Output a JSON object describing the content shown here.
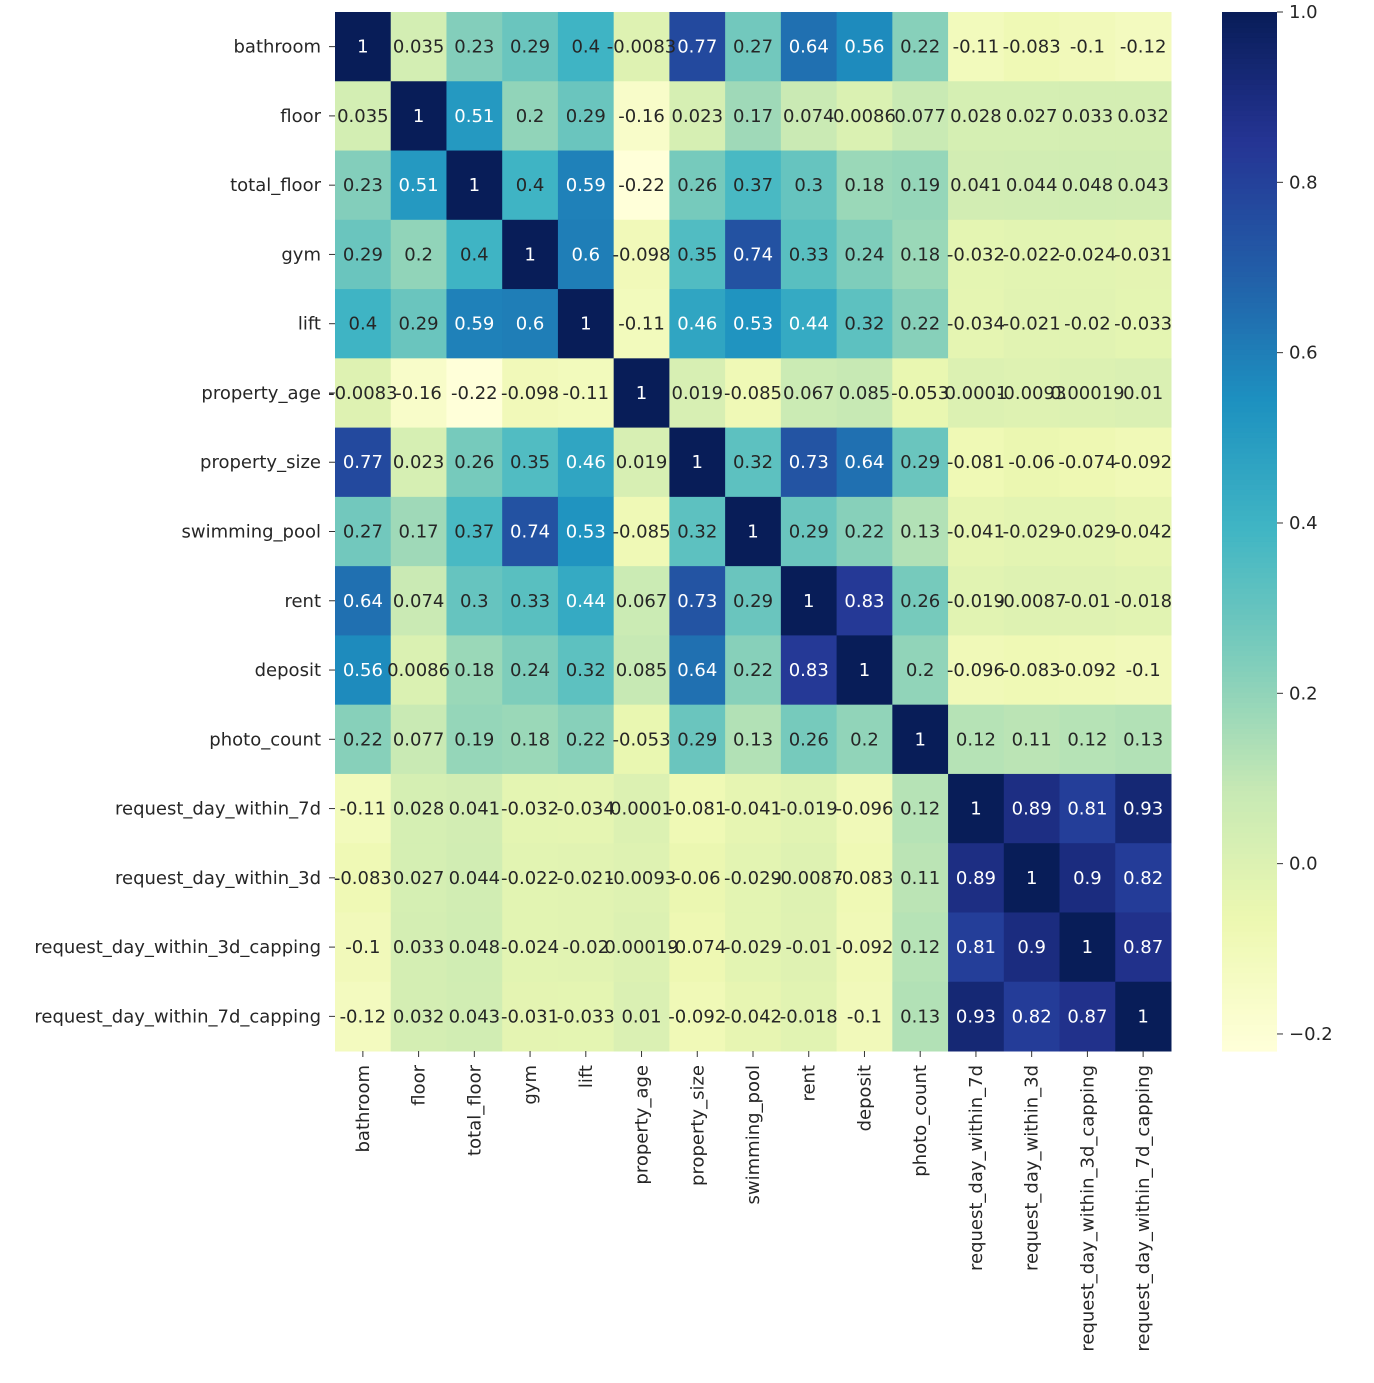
{
  "chart_data": {
    "type": "heatmap",
    "title": "",
    "xlabel": "",
    "ylabel": "",
    "colormap": "YlGnBu",
    "colormap_stops": [
      "#ffffd9",
      "#edf8b1",
      "#c7e9b4",
      "#7fcdbb",
      "#41b6c4",
      "#1d91c0",
      "#225ea8",
      "#253494",
      "#081d58"
    ],
    "vmin": -0.22,
    "vmax": 1.0,
    "colorbar_ticks": [
      "−0.2",
      "0.0",
      "0.2",
      "0.4",
      "0.6",
      "0.8",
      "1.0"
    ],
    "colorbar_tick_values": [
      -0.2,
      0.0,
      0.2,
      0.4,
      0.6,
      0.8,
      1.0
    ],
    "labels": [
      "bathroom",
      "floor",
      "total_floor",
      "gym",
      "lift",
      "property_age",
      "property_size",
      "swimming_pool",
      "rent",
      "deposit",
      "photo_count",
      "request_day_within_7d",
      "request_day_within_3d",
      "request_day_within_3d_capping",
      "request_day_within_7d_capping"
    ],
    "values": [
      [
        1,
        0.035,
        0.23,
        0.29,
        0.4,
        -0.0083,
        0.77,
        0.27,
        0.64,
        0.56,
        0.22,
        -0.11,
        -0.083,
        -0.1,
        -0.12
      ],
      [
        0.035,
        1,
        0.51,
        0.2,
        0.29,
        -0.16,
        0.023,
        0.17,
        0.074,
        0.0086,
        0.077,
        0.028,
        0.027,
        0.033,
        0.032
      ],
      [
        0.23,
        0.51,
        1,
        0.4,
        0.59,
        -0.22,
        0.26,
        0.37,
        0.3,
        0.18,
        0.19,
        0.041,
        0.044,
        0.048,
        0.043
      ],
      [
        0.29,
        0.2,
        0.4,
        1,
        0.6,
        -0.098,
        0.35,
        0.74,
        0.33,
        0.24,
        0.18,
        -0.032,
        -0.022,
        -0.024,
        -0.031
      ],
      [
        0.4,
        0.29,
        0.59,
        0.6,
        1,
        -0.11,
        0.46,
        0.53,
        0.44,
        0.32,
        0.22,
        -0.034,
        -0.021,
        -0.02,
        -0.033
      ],
      [
        -0.0083,
        -0.16,
        -0.22,
        -0.098,
        -0.11,
        1,
        0.019,
        -0.085,
        0.067,
        0.085,
        -0.053,
        0.0001,
        -0.0093,
        0.00019,
        0.01
      ],
      [
        0.77,
        0.023,
        0.26,
        0.35,
        0.46,
        0.019,
        1,
        0.32,
        0.73,
        0.64,
        0.29,
        -0.081,
        -0.06,
        -0.074,
        -0.092
      ],
      [
        0.27,
        0.17,
        0.37,
        0.74,
        0.53,
        -0.085,
        0.32,
        1,
        0.29,
        0.22,
        0.13,
        -0.041,
        -0.029,
        -0.029,
        -0.042
      ],
      [
        0.64,
        0.074,
        0.3,
        0.33,
        0.44,
        0.067,
        0.73,
        0.29,
        1,
        0.83,
        0.26,
        -0.019,
        -0.0087,
        -0.01,
        -0.018
      ],
      [
        0.56,
        0.0086,
        0.18,
        0.24,
        0.32,
        0.085,
        0.64,
        0.22,
        0.83,
        1,
        0.2,
        -0.096,
        -0.083,
        -0.092,
        -0.1
      ],
      [
        0.22,
        0.077,
        0.19,
        0.18,
        0.22,
        -0.053,
        0.29,
        0.13,
        0.26,
        0.2,
        1,
        0.12,
        0.11,
        0.12,
        0.13
      ],
      [
        -0.11,
        0.028,
        0.041,
        -0.032,
        -0.034,
        0.0001,
        -0.081,
        -0.041,
        -0.019,
        -0.096,
        0.12,
        1,
        0.89,
        0.81,
        0.93
      ],
      [
        -0.083,
        0.027,
        0.044,
        -0.022,
        -0.021,
        -0.0093,
        -0.06,
        -0.029,
        -0.0087,
        -0.083,
        0.11,
        0.89,
        1,
        0.9,
        0.82
      ],
      [
        -0.1,
        0.033,
        0.048,
        -0.024,
        -0.02,
        0.00019,
        -0.074,
        -0.029,
        -0.01,
        -0.092,
        0.12,
        0.81,
        0.9,
        1,
        0.87
      ],
      [
        -0.12,
        0.032,
        0.043,
        -0.031,
        -0.033,
        0.01,
        -0.092,
        -0.042,
        -0.018,
        -0.1,
        0.13,
        0.93,
        0.82,
        0.87,
        1
      ]
    ]
  }
}
